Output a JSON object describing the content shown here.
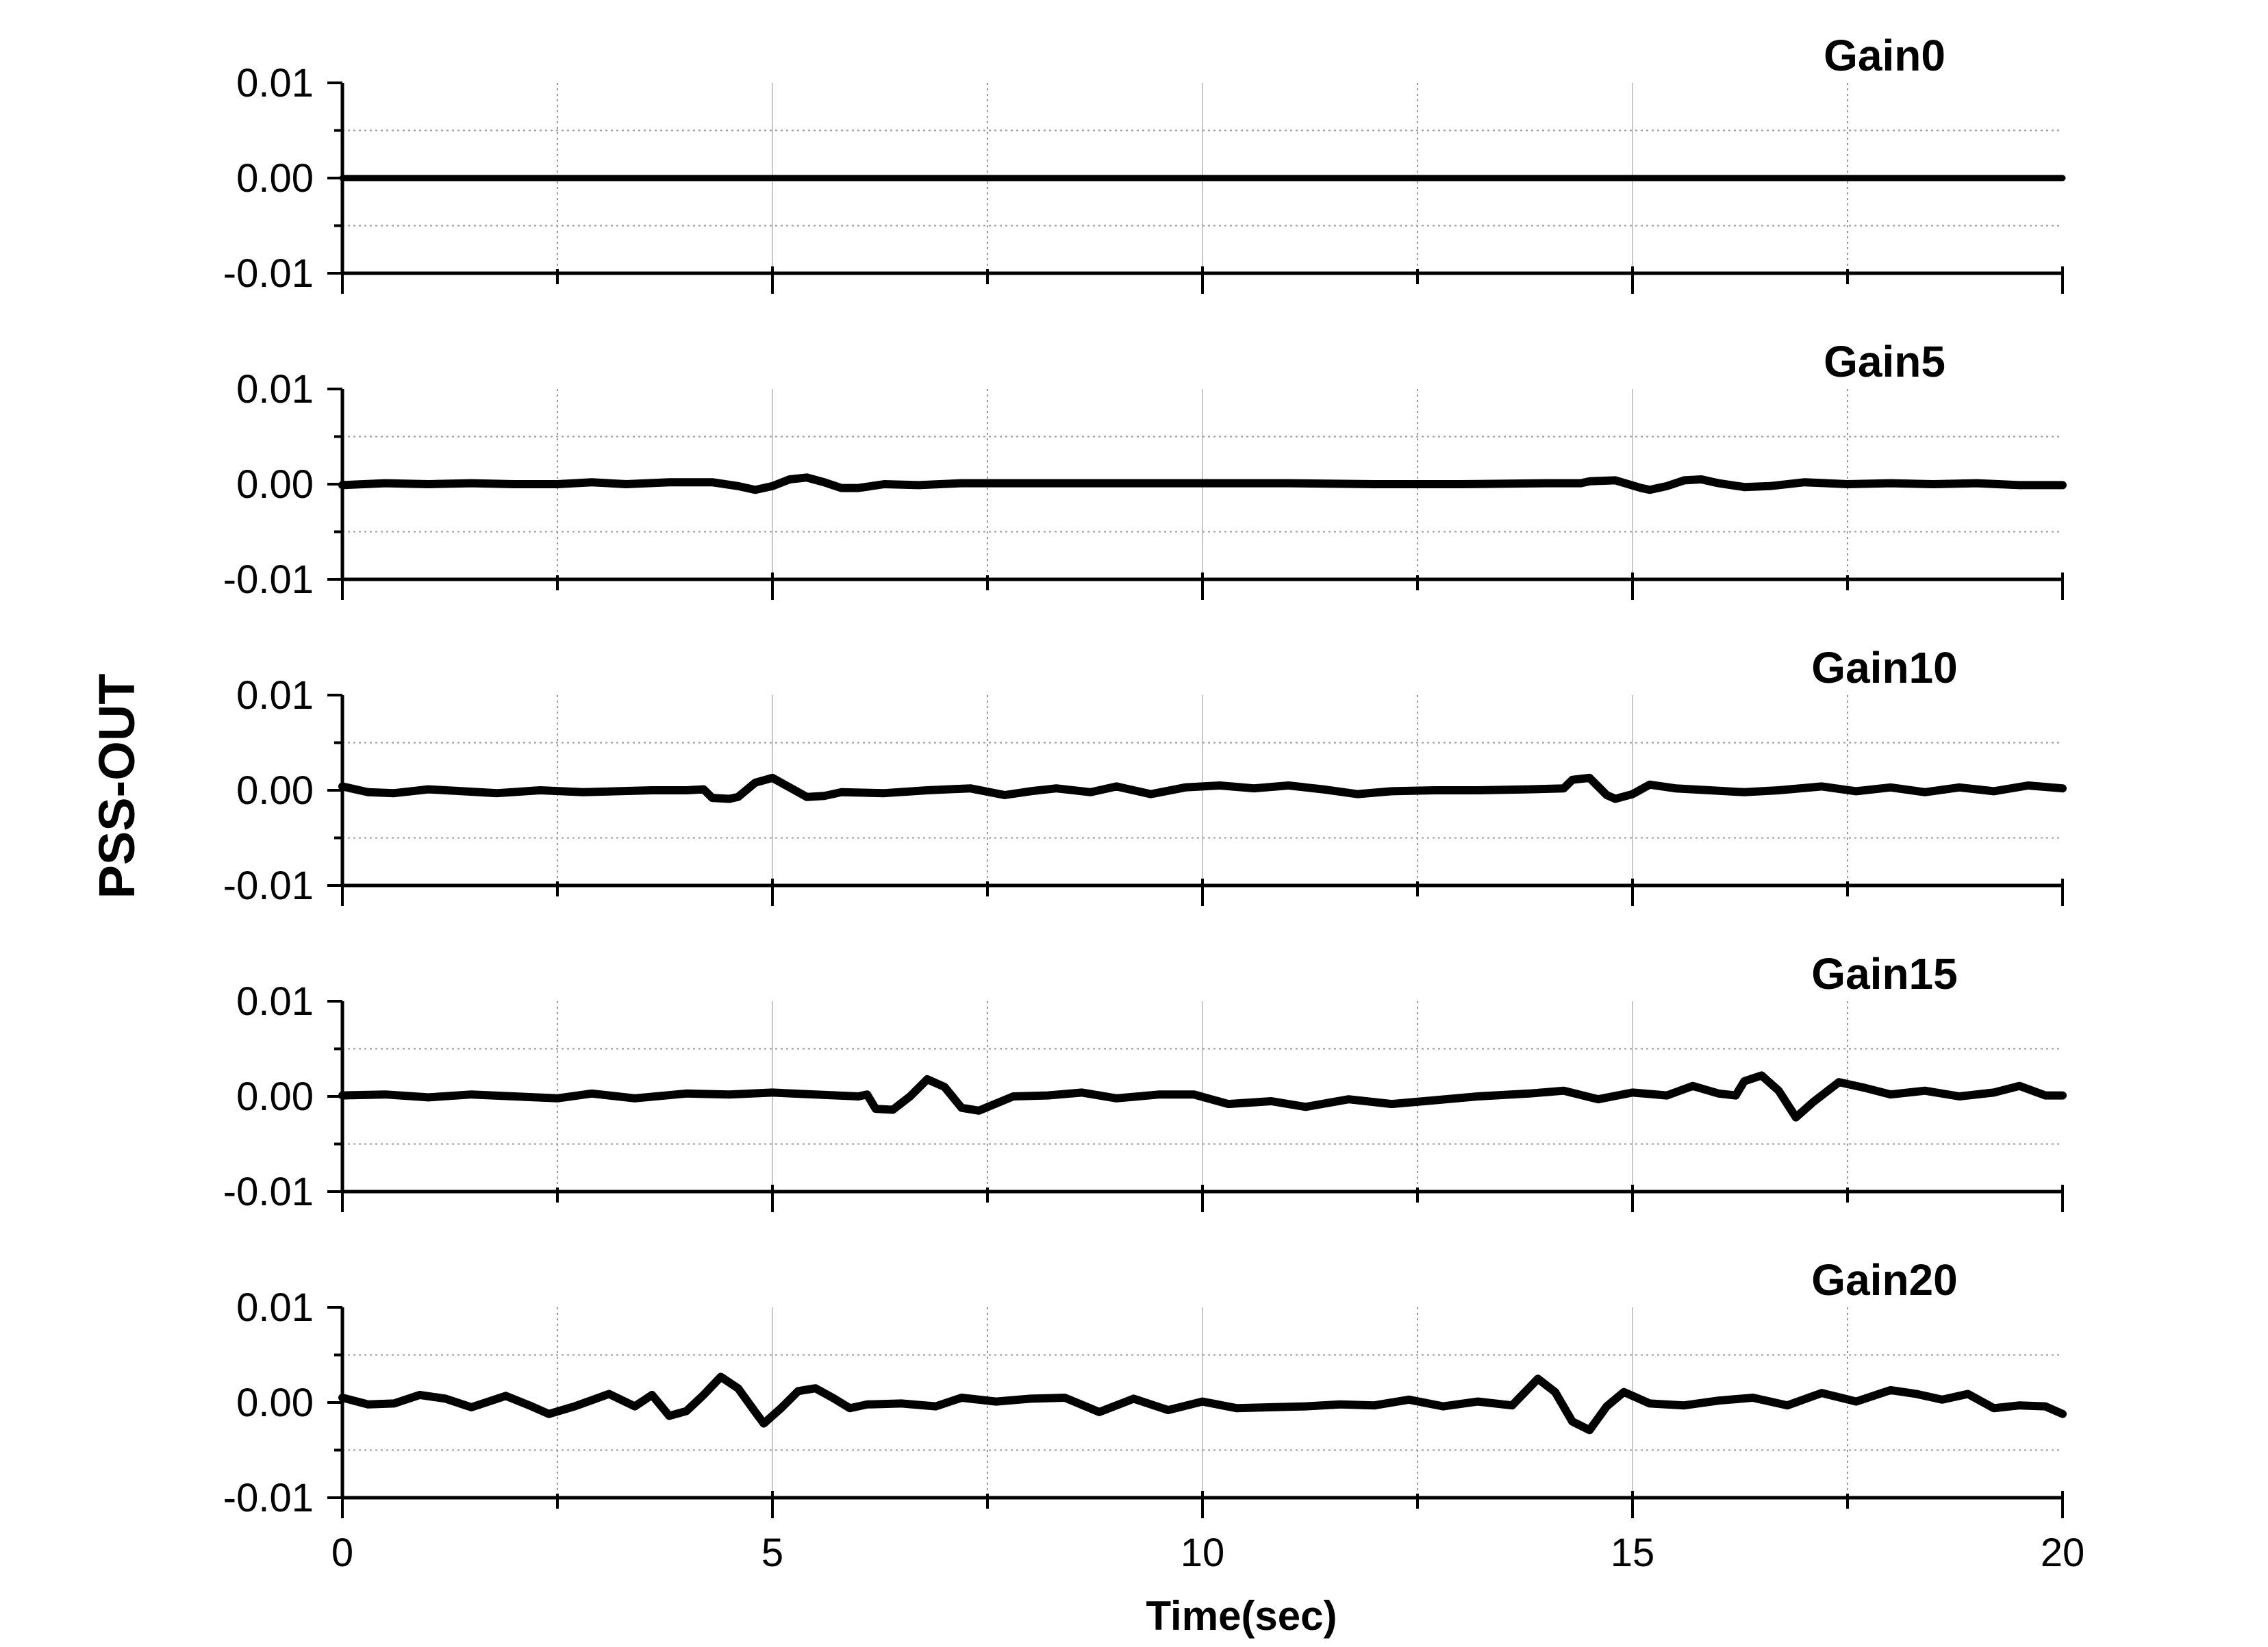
{
  "chart_data": {
    "type": "line",
    "xlabel": "Time(sec)",
    "ylabel": "PSS-OUT",
    "xlim": [
      0,
      20
    ],
    "x_ticks": [
      0,
      5,
      10,
      15,
      20
    ],
    "x_tick_labels": [
      "0",
      "5",
      "10",
      "15",
      "20"
    ],
    "x_grid_solid": [
      5,
      10,
      15
    ],
    "x_grid_dotted": [
      2.5,
      7.5,
      12.5,
      17.5
    ],
    "ylim": [
      -0.01,
      0.01
    ],
    "y_ticks": [
      0.01,
      0.0,
      -0.01
    ],
    "y_tick_labels": [
      "0.01",
      "0.00",
      "-0.01"
    ],
    "y_grid_dotted": [
      0.005,
      -0.005
    ],
    "line_color": "#000000",
    "series": [
      {
        "name": "Gain0",
        "points": [
          [
            0,
            0
          ],
          [
            20,
            0
          ]
        ]
      },
      {
        "name": "Gain5",
        "points": [
          [
            0,
            -0.0001
          ],
          [
            0.5,
            0.0001
          ],
          [
            1,
            0
          ],
          [
            1.5,
            0.0001
          ],
          [
            2,
            0
          ],
          [
            2.5,
            0
          ],
          [
            2.9,
            0.0002
          ],
          [
            3.3,
            0
          ],
          [
            3.8,
            0.0002
          ],
          [
            4.3,
            0.0002
          ],
          [
            4.6,
            -0.0002
          ],
          [
            4.8,
            -0.0006
          ],
          [
            5,
            -0.0002
          ],
          [
            5.2,
            0.0005
          ],
          [
            5.4,
            0.0007
          ],
          [
            5.6,
            0.0002
          ],
          [
            5.8,
            -0.0004
          ],
          [
            6,
            -0.0004
          ],
          [
            6.3,
            0
          ],
          [
            6.7,
            -0.0001
          ],
          [
            7.2,
            0.0001
          ],
          [
            8,
            0.0001
          ],
          [
            9,
            0.0001
          ],
          [
            10,
            0.0001
          ],
          [
            11,
            0.0001
          ],
          [
            12,
            0
          ],
          [
            13,
            0
          ],
          [
            14,
            0.0001
          ],
          [
            14.4,
            0.0001
          ],
          [
            14.5,
            0.0003
          ],
          [
            14.8,
            0.0004
          ],
          [
            15.1,
            -0.0004
          ],
          [
            15.2,
            -0.0006
          ],
          [
            15.4,
            -0.0002
          ],
          [
            15.6,
            0.0004
          ],
          [
            15.8,
            0.0005
          ],
          [
            16,
            0.0001
          ],
          [
            16.3,
            -0.0003
          ],
          [
            16.6,
            -0.0002
          ],
          [
            17,
            0.0002
          ],
          [
            17.5,
            0
          ],
          [
            18,
            0.0001
          ],
          [
            18.5,
            0
          ],
          [
            19,
            0.0001
          ],
          [
            19.5,
            -0.0001
          ],
          [
            20,
            -0.0001
          ]
        ]
      },
      {
        "name": "Gain10",
        "points": [
          [
            0,
            0.0004
          ],
          [
            0.3,
            -0.0002
          ],
          [
            0.6,
            -0.0003
          ],
          [
            1,
            0.0001
          ],
          [
            1.4,
            -0.0001
          ],
          [
            1.8,
            -0.0003
          ],
          [
            2.3,
            0
          ],
          [
            2.8,
            -0.0002
          ],
          [
            3.2,
            -0.0001
          ],
          [
            3.6,
            0
          ],
          [
            4,
            0
          ],
          [
            4.2,
            0.0001
          ],
          [
            4.3,
            -0.0008
          ],
          [
            4.5,
            -0.0009
          ],
          [
            4.6,
            -0.0007
          ],
          [
            4.8,
            0.0008
          ],
          [
            5,
            0.0013
          ],
          [
            5.2,
            0.0003
          ],
          [
            5.4,
            -0.0007
          ],
          [
            5.6,
            -0.0006
          ],
          [
            5.8,
            -0.0002
          ],
          [
            6.3,
            -0.0003
          ],
          [
            6.8,
            0
          ],
          [
            7.3,
            0.0002
          ],
          [
            7.7,
            -0.0005
          ],
          [
            8,
            -0.0001
          ],
          [
            8.3,
            0.0002
          ],
          [
            8.7,
            -0.0002
          ],
          [
            9,
            0.0004
          ],
          [
            9.4,
            -0.0004
          ],
          [
            9.8,
            0.0003
          ],
          [
            10.2,
            0.0005
          ],
          [
            10.6,
            0.0002
          ],
          [
            11,
            0.0005
          ],
          [
            11.4,
            0.0001
          ],
          [
            11.8,
            -0.0004
          ],
          [
            12.2,
            -0.0001
          ],
          [
            12.7,
            0
          ],
          [
            13.2,
            0
          ],
          [
            13.8,
            0.0001
          ],
          [
            14.2,
            0.0002
          ],
          [
            14.3,
            0.0011
          ],
          [
            14.5,
            0.0013
          ],
          [
            14.7,
            -0.0005
          ],
          [
            14.8,
            -0.0009
          ],
          [
            15,
            -0.0004
          ],
          [
            15.2,
            0.0006
          ],
          [
            15.5,
            0.0002
          ],
          [
            15.9,
            0
          ],
          [
            16.3,
            -0.0002
          ],
          [
            16.7,
            0
          ],
          [
            17.2,
            0.0004
          ],
          [
            17.6,
            -0.0001
          ],
          [
            18,
            0.0003
          ],
          [
            18.4,
            -0.0002
          ],
          [
            18.8,
            0.0003
          ],
          [
            19.2,
            -0.0001
          ],
          [
            19.6,
            0.0005
          ],
          [
            20,
            0.0002
          ]
        ]
      },
      {
        "name": "Gain15",
        "points": [
          [
            0,
            0.0001
          ],
          [
            0.5,
            0.0002
          ],
          [
            1,
            -0.0001
          ],
          [
            1.5,
            0.0002
          ],
          [
            2,
            0
          ],
          [
            2.5,
            -0.0002
          ],
          [
            2.9,
            0.0003
          ],
          [
            3.4,
            -0.0002
          ],
          [
            4,
            0.0003
          ],
          [
            4.5,
            0.0002
          ],
          [
            5,
            0.0004
          ],
          [
            5.5,
            0.0002
          ],
          [
            6,
            0
          ],
          [
            6.1,
            0.0002
          ],
          [
            6.2,
            -0.0013
          ],
          [
            6.4,
            -0.0014
          ],
          [
            6.6,
            0
          ],
          [
            6.8,
            0.0018
          ],
          [
            7,
            0.001
          ],
          [
            7.2,
            -0.0012
          ],
          [
            7.4,
            -0.0015
          ],
          [
            7.8,
            0
          ],
          [
            8.2,
            0.0001
          ],
          [
            8.6,
            0.0004
          ],
          [
            9,
            -0.0002
          ],
          [
            9.5,
            0.0002
          ],
          [
            9.9,
            0.0002
          ],
          [
            10.3,
            -0.0008
          ],
          [
            10.8,
            -0.0005
          ],
          [
            11.2,
            -0.0011
          ],
          [
            11.7,
            -0.0003
          ],
          [
            12.2,
            -0.0008
          ],
          [
            12.7,
            -0.0004
          ],
          [
            13.2,
            0
          ],
          [
            13.8,
            0.0003
          ],
          [
            14.2,
            0.0006
          ],
          [
            14.6,
            -0.0003
          ],
          [
            15,
            0.0004
          ],
          [
            15.4,
            0.0001
          ],
          [
            15.7,
            0.0011
          ],
          [
            16,
            0.0003
          ],
          [
            16.2,
            0.0001
          ],
          [
            16.3,
            0.0016
          ],
          [
            16.5,
            0.0022
          ],
          [
            16.7,
            0.0006
          ],
          [
            16.9,
            -0.0022
          ],
          [
            17.1,
            -0.0006
          ],
          [
            17.4,
            0.0015
          ],
          [
            17.7,
            0.0009
          ],
          [
            18,
            0.0002
          ],
          [
            18.4,
            0.0006
          ],
          [
            18.8,
            0
          ],
          [
            19.2,
            0.0004
          ],
          [
            19.5,
            0.0011
          ],
          [
            19.8,
            0.0001
          ],
          [
            20,
            0.0001
          ]
        ]
      },
      {
        "name": "Gain20",
        "points": [
          [
            0,
            0.0005
          ],
          [
            0.3,
            -0.0002
          ],
          [
            0.6,
            -0.0001
          ],
          [
            0.9,
            0.0008
          ],
          [
            1.2,
            0.0004
          ],
          [
            1.5,
            -0.0005
          ],
          [
            1.9,
            0.0007
          ],
          [
            2.2,
            -0.0004
          ],
          [
            2.4,
            -0.0012
          ],
          [
            2.7,
            -0.0004
          ],
          [
            3.1,
            0.0009
          ],
          [
            3.4,
            -0.0004
          ],
          [
            3.6,
            0.0008
          ],
          [
            3.8,
            -0.0014
          ],
          [
            4.0,
            -0.0009
          ],
          [
            4.2,
            0.0008
          ],
          [
            4.4,
            0.0027
          ],
          [
            4.6,
            0.0015
          ],
          [
            4.8,
            -0.001
          ],
          [
            4.9,
            -0.0022
          ],
          [
            5.1,
            -0.0006
          ],
          [
            5.3,
            0.0012
          ],
          [
            5.5,
            0.0015
          ],
          [
            5.7,
            0.0005
          ],
          [
            5.9,
            -0.0006
          ],
          [
            6.1,
            -0.0002
          ],
          [
            6.5,
            -0.0001
          ],
          [
            6.9,
            -0.0004
          ],
          [
            7.2,
            0.0005
          ],
          [
            7.6,
            0.0001
          ],
          [
            8,
            0.0004
          ],
          [
            8.4,
            0.0005
          ],
          [
            8.8,
            -0.001
          ],
          [
            9.2,
            0.0004
          ],
          [
            9.6,
            -0.0008
          ],
          [
            10,
            0.0001
          ],
          [
            10.4,
            -0.0006
          ],
          [
            10.8,
            -0.0005
          ],
          [
            11.2,
            -0.0004
          ],
          [
            11.6,
            -0.0002
          ],
          [
            12,
            -0.0003
          ],
          [
            12.4,
            0.0003
          ],
          [
            12.8,
            -0.0004
          ],
          [
            13.2,
            0.0001
          ],
          [
            13.6,
            -0.0003
          ],
          [
            13.9,
            0.0025
          ],
          [
            14.1,
            0.0011
          ],
          [
            14.3,
            -0.002
          ],
          [
            14.5,
            -0.0029
          ],
          [
            14.7,
            -0.0004
          ],
          [
            14.9,
            0.0011
          ],
          [
            15.2,
            -0.0001
          ],
          [
            15.6,
            -0.0003
          ],
          [
            16,
            0.0002
          ],
          [
            16.4,
            0.0005
          ],
          [
            16.8,
            -0.0003
          ],
          [
            17.2,
            0.001
          ],
          [
            17.6,
            0.0001
          ],
          [
            18,
            0.0013
          ],
          [
            18.3,
            0.0009
          ],
          [
            18.6,
            0.0003
          ],
          [
            18.9,
            0.0009
          ],
          [
            19.2,
            -0.0006
          ],
          [
            19.5,
            -0.0003
          ],
          [
            19.8,
            -0.0004
          ],
          [
            20,
            -0.0012
          ]
        ]
      }
    ]
  }
}
